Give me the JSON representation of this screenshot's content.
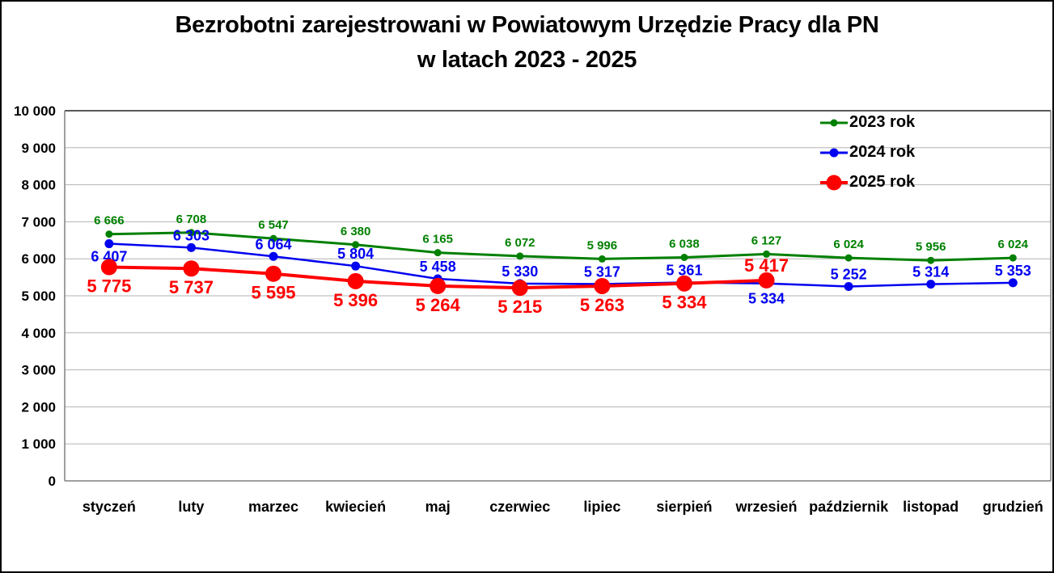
{
  "title": {
    "line1": "Bezrobotni zarejestrowani w Powiatowym Urzędzie Pracy dla PN",
    "line2": "w latach 2023 - 2025"
  },
  "chart_data": {
    "type": "line",
    "title": "Bezrobotni zarejestrowani w Powiatowym Urzędzie Pracy dla PN w latach 2023 - 2025",
    "categories": [
      "styczeń",
      "luty",
      "marzec",
      "kwiecień",
      "maj",
      "czerwiec",
      "lipiec",
      "sierpień",
      "wrzesień",
      "październik",
      "listopad",
      "grudzień"
    ],
    "series": [
      {
        "name": "2023 rok",
        "color": "#008000",
        "values": [
          6666,
          6708,
          6547,
          6380,
          6165,
          6072,
          5996,
          6038,
          6127,
          6024,
          5956,
          6024
        ]
      },
      {
        "name": "2024 rok",
        "color": "#0000f0",
        "values": [
          6407,
          6303,
          6064,
          5804,
          5458,
          5330,
          5317,
          5361,
          5334,
          5252,
          5314,
          5353
        ]
      },
      {
        "name": "2025 rok",
        "color": "#ff0000",
        "values": [
          5775,
          5737,
          5595,
          5396,
          5264,
          5215,
          5263,
          5334,
          5417,
          null,
          null,
          null
        ]
      }
    ],
    "ylim": [
      0,
      10000
    ],
    "yticks": [
      0,
      1000,
      2000,
      3000,
      4000,
      5000,
      6000,
      7000,
      8000,
      9000,
      10000
    ],
    "xlabel": "",
    "ylabel": "",
    "grid": true,
    "legend_position": "top-right",
    "number_format": "space-thousands",
    "value_labels_visible": true
  },
  "style_colors": {
    "grid": "#b3b3b3",
    "axis": "#808080",
    "plot_border_top": "#595959",
    "text": "#000000",
    "background": "#ffffff"
  }
}
